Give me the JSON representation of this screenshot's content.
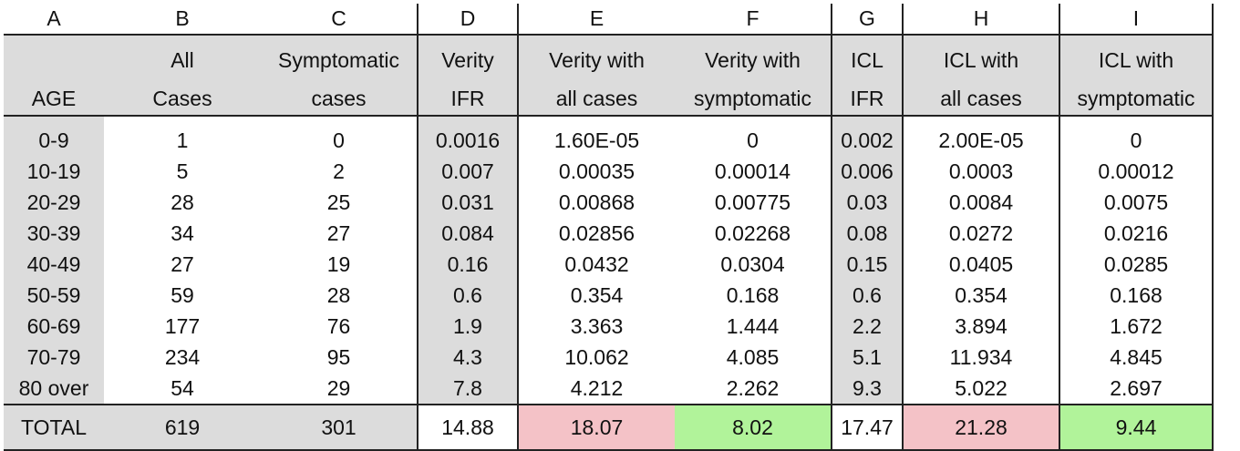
{
  "columns": [
    "A",
    "B",
    "C",
    "D",
    "E",
    "F",
    "G",
    "H",
    "I"
  ],
  "header_line1": [
    "",
    "All",
    "Symptomatic",
    "Verity",
    "Verity with",
    "Verity with",
    "ICL",
    "ICL with",
    "ICL with"
  ],
  "header_line2": [
    "AGE",
    "Cases",
    "cases",
    "IFR",
    "all cases",
    "symptomatic",
    "IFR",
    "all cases",
    "symptomatic"
  ],
  "rows": [
    [
      "0-9",
      "1",
      "0",
      "0.0016",
      "1.60E-05",
      "0",
      "0.002",
      "2.00E-05",
      "0"
    ],
    [
      "10-19",
      "5",
      "2",
      "0.007",
      "0.00035",
      "0.00014",
      "0.006",
      "0.0003",
      "0.00012"
    ],
    [
      "20-29",
      "28",
      "25",
      "0.031",
      "0.00868",
      "0.00775",
      "0.03",
      "0.0084",
      "0.0075"
    ],
    [
      "30-39",
      "34",
      "27",
      "0.084",
      "0.02856",
      "0.02268",
      "0.08",
      "0.0272",
      "0.0216"
    ],
    [
      "40-49",
      "27",
      "19",
      "0.16",
      "0.0432",
      "0.0304",
      "0.15",
      "0.0405",
      "0.0285"
    ],
    [
      "50-59",
      "59",
      "28",
      "0.6",
      "0.354",
      "0.168",
      "0.6",
      "0.354",
      "0.168"
    ],
    [
      "60-69",
      "177",
      "76",
      "1.9",
      "3.363",
      "1.444",
      "2.2",
      "3.894",
      "1.672"
    ],
    [
      "70-79",
      "234",
      "95",
      "4.3",
      "10.062",
      "4.085",
      "5.1",
      "11.934",
      "4.845"
    ],
    [
      "80 over",
      "54",
      "29",
      "7.8",
      "4.212",
      "2.262",
      "9.3",
      "5.022",
      "2.697"
    ]
  ],
  "total": [
    "TOTAL",
    "619",
    "301",
    "14.88",
    "18.07",
    "8.02",
    "17.47",
    "21.28",
    "9.44"
  ],
  "colors": {
    "gray": "#dcdcdc",
    "pink": "#f4c2c7",
    "green": "#b1f39a"
  }
}
